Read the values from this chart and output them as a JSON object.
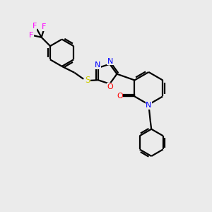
{
  "background_color": "#ebebeb",
  "bond_color": "#000000",
  "atom_colors": {
    "N": "#0000ff",
    "O": "#ff0000",
    "S": "#cccc00",
    "F": "#ff00ff"
  },
  "figsize": [
    3.0,
    3.0
  ],
  "dpi": 100
}
